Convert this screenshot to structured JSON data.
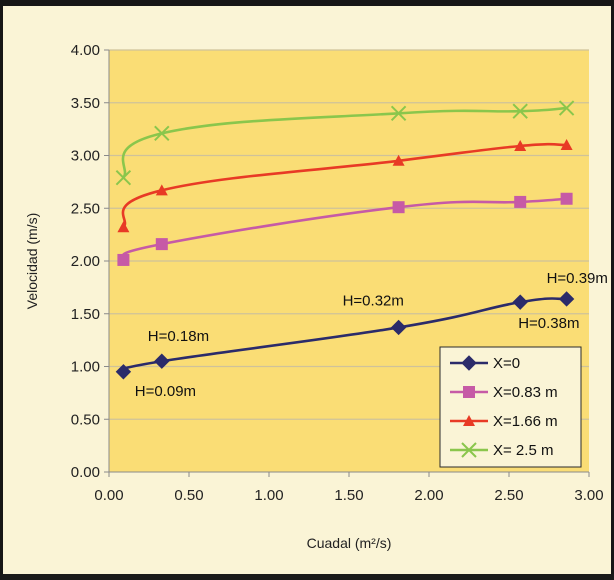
{
  "colors": {
    "background": "#faf4d6",
    "plot_area": "#fadd75",
    "grid": "#cfc29a",
    "series": [
      "#2b2b6a",
      "#c65aa6",
      "#e83a25",
      "#8ac64c"
    ]
  },
  "chart_data": {
    "type": "line",
    "title": "",
    "xlabel": "Cuadal (m²/s)",
    "ylabel": "Velocidad (m/s)",
    "xlim": [
      0,
      3
    ],
    "ylim": [
      0,
      4
    ],
    "xticks": [
      "0.00",
      "0.50",
      "1.00",
      "1.50",
      "2.00",
      "2.50",
      "3.00"
    ],
    "yticks": [
      "0.00",
      "0.50",
      "1.00",
      "1.50",
      "2.00",
      "2.50",
      "3.00",
      "3.50",
      "4.00"
    ],
    "grid": "horizontal",
    "legend_position": "bottom-right",
    "series": [
      {
        "name": "X=0",
        "marker": "diamond",
        "points": [
          [
            0.09,
            0.95
          ],
          [
            0.33,
            1.05
          ],
          [
            1.81,
            1.37
          ],
          [
            2.57,
            1.61
          ],
          [
            2.86,
            1.64
          ]
        ]
      },
      {
        "name": "X=0.83 m",
        "marker": "square",
        "points": [
          [
            0.09,
            2.01
          ],
          [
            0.33,
            2.16
          ],
          [
            1.81,
            2.51
          ],
          [
            2.57,
            2.56
          ],
          [
            2.86,
            2.59
          ]
        ]
      },
      {
        "name": "X=1.66 m",
        "marker": "triangle",
        "points": [
          [
            0.09,
            2.32
          ],
          [
            0.33,
            2.67
          ],
          [
            1.81,
            2.95
          ],
          [
            2.57,
            3.09
          ],
          [
            2.86,
            3.1
          ]
        ]
      },
      {
        "name": "X= 2.5 m",
        "marker": "x",
        "points": [
          [
            0.09,
            2.79
          ],
          [
            0.33,
            3.21
          ],
          [
            1.81,
            3.4
          ],
          [
            2.57,
            3.42
          ],
          [
            2.86,
            3.45
          ]
        ]
      }
    ],
    "annotations": [
      {
        "text": "H=0.09m",
        "x": 0.09,
        "y": 0.95
      },
      {
        "text": "H=0.18m",
        "x": 0.33,
        "y": 1.05
      },
      {
        "text": "H=0.32m",
        "x": 1.81,
        "y": 1.37
      },
      {
        "text": "H=0.38m",
        "x": 2.57,
        "y": 1.61
      },
      {
        "text": "H=0.39m",
        "x": 2.86,
        "y": 1.64
      }
    ]
  }
}
